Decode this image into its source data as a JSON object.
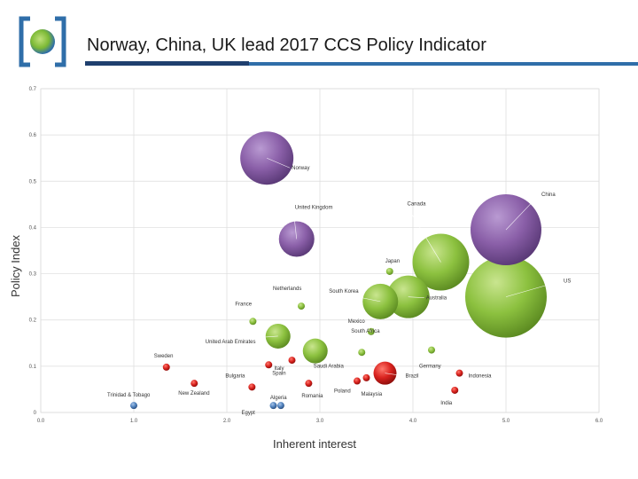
{
  "header": {
    "title": "Norway, China, UK lead 2017 CCS Policy Indicator"
  },
  "colors": {
    "title_rule_dark": "#1f3f6e",
    "title_rule_light": "#2f6ea9",
    "logo_frame": "#2f6ea9",
    "purple": "#8a5fa8",
    "green": "#8cc13f",
    "red": "#d9221e",
    "blue": "#4f81bd"
  },
  "chart_data": {
    "type": "scatter",
    "xlabel": "Inherent interest",
    "ylabel": "Policy Index",
    "xlim": [
      0,
      6
    ],
    "ylim": [
      0,
      0.7
    ],
    "xticks": [
      "0.0",
      "1.0",
      "2.0",
      "3.0",
      "4.0",
      "5.0",
      "6.0"
    ],
    "yticks": [
      "0",
      "0.1",
      "0.2",
      "0.3",
      "0.4",
      "0.5",
      "0.6",
      "0.7"
    ],
    "grid": true,
    "points": [
      {
        "label": "Norway",
        "x": 2.43,
        "y": 0.55,
        "size": 30,
        "color": "purple"
      },
      {
        "label": "China",
        "x": 5.0,
        "y": 0.395,
        "size": 40,
        "color": "purple"
      },
      {
        "label": "United Kingdom",
        "x": 2.75,
        "y": 0.375,
        "size": 20,
        "color": "purple"
      },
      {
        "label": "US",
        "x": 5.0,
        "y": 0.25,
        "size": 46,
        "color": "green"
      },
      {
        "label": "Canada",
        "x": 4.3,
        "y": 0.325,
        "size": 32,
        "color": "green"
      },
      {
        "label": "Australia",
        "x": 3.95,
        "y": 0.25,
        "size": 24,
        "color": "green"
      },
      {
        "label": "South Korea",
        "x": 3.65,
        "y": 0.24,
        "size": 20,
        "color": "green"
      },
      {
        "label": "Japan",
        "x": 3.75,
        "y": 0.305,
        "size": 4,
        "color": "green"
      },
      {
        "label": "Netherlands",
        "x": 2.8,
        "y": 0.23,
        "size": 4,
        "color": "green"
      },
      {
        "label": "France",
        "x": 2.28,
        "y": 0.197,
        "size": 4,
        "color": "green"
      },
      {
        "label": "Mexico",
        "x": 3.55,
        "y": 0.175,
        "size": 4,
        "color": "green"
      },
      {
        "label": "United Arab Emirates",
        "x": 2.55,
        "y": 0.165,
        "size": 14,
        "color": "green"
      },
      {
        "label": "South Africa",
        "x": 3.45,
        "y": 0.13,
        "size": 4,
        "color": "green"
      },
      {
        "label": "Saudi Arabia",
        "x": 2.95,
        "y": 0.133,
        "size": 14,
        "color": "green"
      },
      {
        "label": "Germany",
        "x": 4.2,
        "y": 0.135,
        "size": 4,
        "color": "green"
      },
      {
        "label": "Brazil",
        "x": 3.7,
        "y": 0.085,
        "size": 13,
        "color": "red"
      },
      {
        "label": "Indonesia",
        "x": 4.5,
        "y": 0.085,
        "size": 4,
        "color": "red"
      },
      {
        "label": "India",
        "x": 4.45,
        "y": 0.048,
        "size": 4,
        "color": "red"
      },
      {
        "label": "Malaysia",
        "x": 3.5,
        "y": 0.075,
        "size": 4,
        "color": "red"
      },
      {
        "label": "Poland",
        "x": 3.4,
        "y": 0.068,
        "size": 4,
        "color": "red"
      },
      {
        "label": "Romania",
        "x": 2.88,
        "y": 0.063,
        "size": 4,
        "color": "red"
      },
      {
        "label": "Italy",
        "x": 2.7,
        "y": 0.113,
        "size": 4,
        "color": "red"
      },
      {
        "label": "Spain",
        "x": 2.45,
        "y": 0.103,
        "size": 4,
        "color": "red"
      },
      {
        "label": "Bulgaria",
        "x": 2.27,
        "y": 0.055,
        "size": 4,
        "color": "red"
      },
      {
        "label": "New Zealand",
        "x": 1.65,
        "y": 0.063,
        "size": 4,
        "color": "red"
      },
      {
        "label": "Sweden",
        "x": 1.35,
        "y": 0.098,
        "size": 4,
        "color": "red"
      },
      {
        "label": "Algeria",
        "x": 2.58,
        "y": 0.015,
        "size": 4,
        "color": "blue"
      },
      {
        "label": "Egypt",
        "x": 2.5,
        "y": 0.015,
        "size": 4,
        "color": "blue"
      },
      {
        "label": "Trinidad & Tobago",
        "x": 1.0,
        "y": 0.015,
        "size": 4,
        "color": "blue"
      }
    ]
  }
}
